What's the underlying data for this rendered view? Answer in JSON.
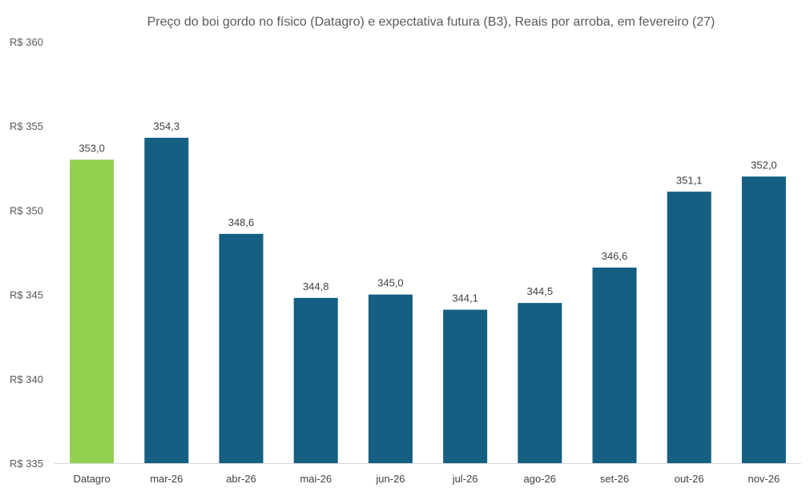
{
  "chart_data": {
    "type": "bar",
    "title": "Preço do boi gordo no físico (Datagro)  e expectativa futura (B3), Reais por arroba, em fevereiro (27)",
    "xlabel": "",
    "ylabel": "",
    "ylim": [
      335,
      360
    ],
    "yticks": [
      335,
      340,
      345,
      350,
      355,
      360
    ],
    "ytick_labels": [
      "R$ 335",
      "R$ 340",
      "R$ 345",
      "R$ 350",
      "R$ 355",
      "R$ 360"
    ],
    "categories": [
      "Datagro",
      "mar-26",
      "abr-26",
      "mai-26",
      "jun-26",
      "jul-26",
      "ago-26",
      "set-26",
      "out-26",
      "nov-26"
    ],
    "values": [
      353.0,
      354.3,
      348.6,
      344.8,
      345.0,
      344.1,
      344.5,
      346.6,
      351.1,
      352.0
    ],
    "data_labels": [
      "353,0",
      "354,3",
      "348,6",
      "344,8",
      "345,0",
      "344,1",
      "344,5",
      "346,6",
      "351,1",
      "352,0"
    ],
    "colors": [
      "#92d050",
      "#145f82",
      "#145f82",
      "#145f82",
      "#145f82",
      "#145f82",
      "#145f82",
      "#145f82",
      "#145f82",
      "#145f82"
    ],
    "grid": false,
    "legend": "none"
  }
}
